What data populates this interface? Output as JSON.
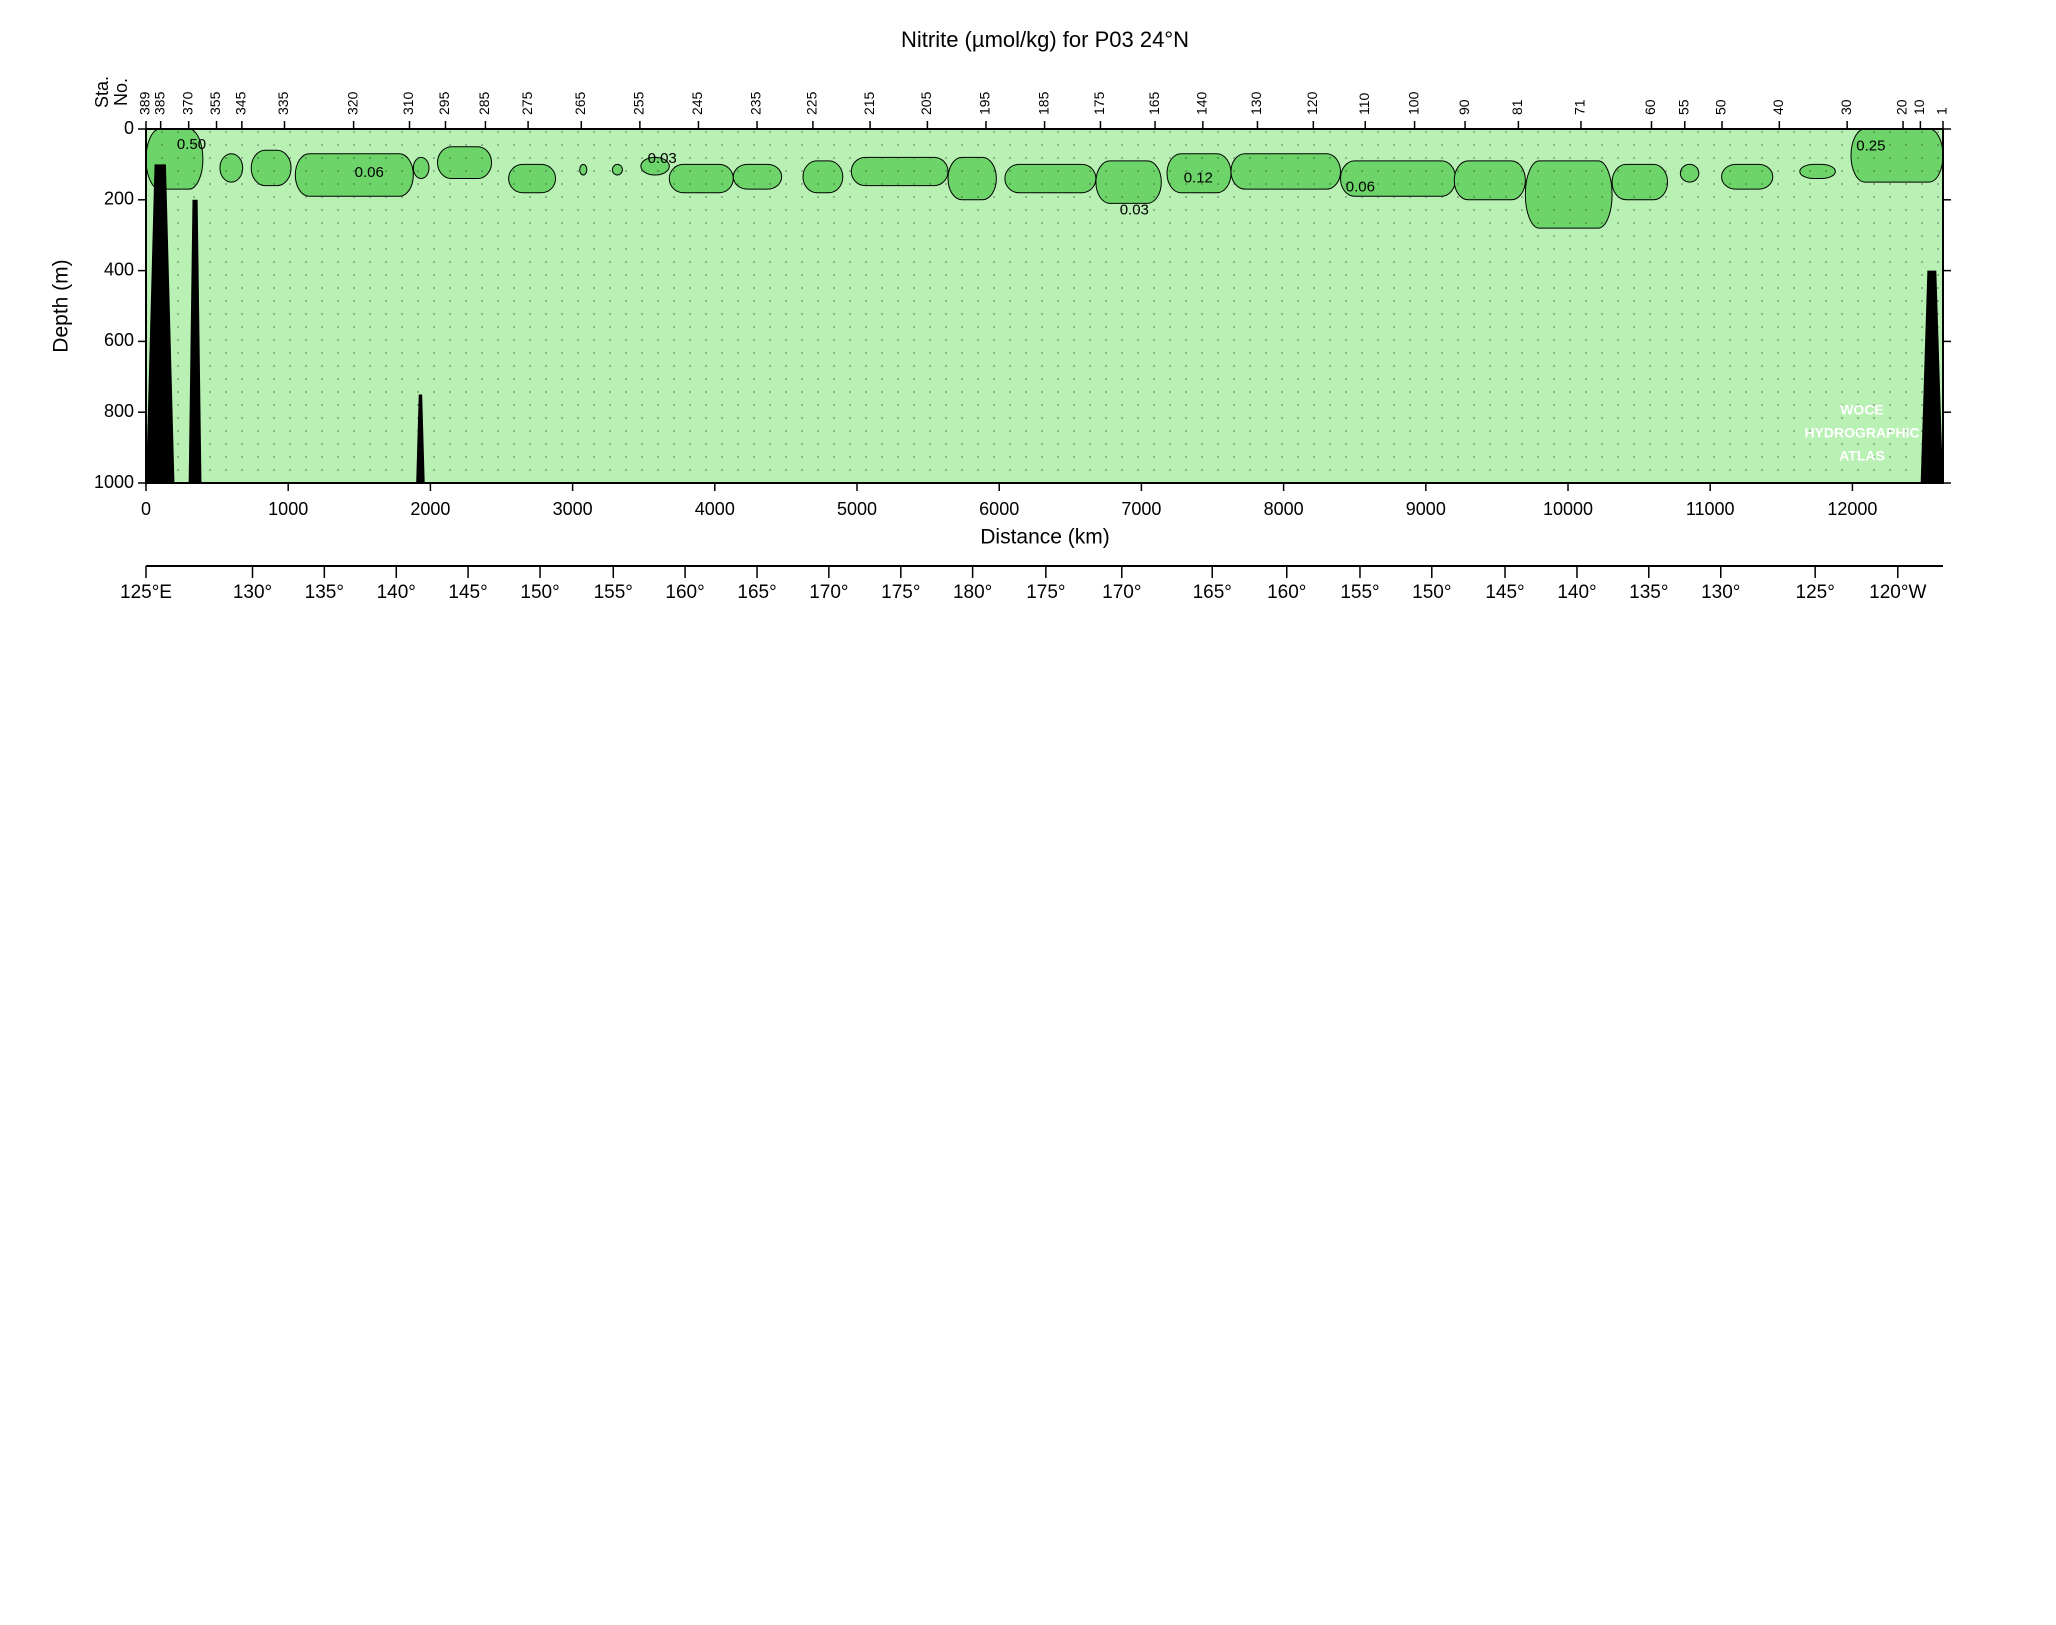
{
  "chart_data": {
    "type": "contour",
    "title": "Nitrite (µmol/kg) for P03 24°N",
    "x_label": "Distance (km)",
    "y_label": "Depth (m)",
    "station_axis_label": [
      "Sta.",
      "No."
    ],
    "xlim": [
      0,
      12637
    ],
    "xticks": [
      0,
      1000,
      2000,
      3000,
      4000,
      5000,
      6000,
      7000,
      8000,
      9000,
      10000,
      11000,
      12000
    ],
    "ylim": [
      0,
      1000
    ],
    "yticks": [
      0,
      200,
      400,
      600,
      800,
      1000
    ],
    "y_reversed": true,
    "background_color": "#b9f0b4",
    "patch_color": "#6cd468",
    "land_color": "#000000",
    "station_ticks": [
      {
        "value": 0,
        "label": "389"
      },
      {
        "value": 103,
        "label": "385"
      },
      {
        "value": 300,
        "label": "370"
      },
      {
        "value": 496,
        "label": "355"
      },
      {
        "value": 674,
        "label": "345"
      },
      {
        "value": 974,
        "label": "335"
      },
      {
        "value": 1460,
        "label": "320"
      },
      {
        "value": 1853,
        "label": "310"
      },
      {
        "value": 2106,
        "label": "295"
      },
      {
        "value": 2387,
        "label": "285"
      },
      {
        "value": 2687,
        "label": "275"
      },
      {
        "value": 3061,
        "label": "265"
      },
      {
        "value": 3473,
        "label": "255"
      },
      {
        "value": 3885,
        "label": "245"
      },
      {
        "value": 4297,
        "label": "235"
      },
      {
        "value": 4690,
        "label": "225"
      },
      {
        "value": 5092,
        "label": "215"
      },
      {
        "value": 5495,
        "label": "205"
      },
      {
        "value": 5907,
        "label": "195"
      },
      {
        "value": 6319,
        "label": "185"
      },
      {
        "value": 6712,
        "label": "175"
      },
      {
        "value": 7096,
        "label": "165"
      },
      {
        "value": 7432,
        "label": "140"
      },
      {
        "value": 7816,
        "label": "130"
      },
      {
        "value": 8209,
        "label": "120"
      },
      {
        "value": 8574,
        "label": "110"
      },
      {
        "value": 8921,
        "label": "100"
      },
      {
        "value": 9276,
        "label": "90"
      },
      {
        "value": 9651,
        "label": "81"
      },
      {
        "value": 10091,
        "label": "71"
      },
      {
        "value": 10587,
        "label": "60"
      },
      {
        "value": 10821,
        "label": "55"
      },
      {
        "value": 11083,
        "label": "50"
      },
      {
        "value": 11486,
        "label": "40"
      },
      {
        "value": 11963,
        "label": "30"
      },
      {
        "value": 12356,
        "label": "20"
      },
      {
        "value": 12478,
        "label": "10"
      },
      {
        "value": 12637,
        "label": "1"
      }
    ],
    "longitude_ticks": [
      {
        "value": 0,
        "label": "125°E"
      },
      {
        "value": 749,
        "label": "130°"
      },
      {
        "value": 1254,
        "label": "135°"
      },
      {
        "value": 1760,
        "label": "140°"
      },
      {
        "value": 2265,
        "label": "145°"
      },
      {
        "value": 2771,
        "label": "150°"
      },
      {
        "value": 3286,
        "label": "155°"
      },
      {
        "value": 3791,
        "label": "160°"
      },
      {
        "value": 4297,
        "label": "165°"
      },
      {
        "value": 4802,
        "label": "170°"
      },
      {
        "value": 5308,
        "label": "175°"
      },
      {
        "value": 5813,
        "label": "180°"
      },
      {
        "value": 6328,
        "label": "175°"
      },
      {
        "value": 6862,
        "label": "170°"
      },
      {
        "value": 7498,
        "label": "165°"
      },
      {
        "value": 8022,
        "label": "160°"
      },
      {
        "value": 8537,
        "label": "155°"
      },
      {
        "value": 9042,
        "label": "150°"
      },
      {
        "value": 9557,
        "label": "145°"
      },
      {
        "value": 10063,
        "label": "140°"
      },
      {
        "value": 10568,
        "label": "135°"
      },
      {
        "value": 11074,
        "label": "130°"
      },
      {
        "value": 11738,
        "label": "125°"
      },
      {
        "value": 12319,
        "label": "120°W"
      }
    ],
    "patches": [
      {
        "x": [
          0,
          400
        ],
        "depth": [
          0,
          170
        ]
      },
      {
        "x": [
          520,
          680
        ],
        "depth": [
          70,
          150
        ]
      },
      {
        "x": [
          740,
          1020
        ],
        "depth": [
          60,
          160
        ]
      },
      {
        "x": [
          1050,
          1880
        ],
        "depth": [
          70,
          190
        ]
      },
      {
        "x": [
          1880,
          1990
        ],
        "depth": [
          80,
          140
        ]
      },
      {
        "x": [
          2050,
          2430
        ],
        "depth": [
          50,
          140
        ]
      },
      {
        "x": [
          2550,
          2880
        ],
        "depth": [
          100,
          180
        ]
      },
      {
        "x": [
          3050,
          3100
        ],
        "depth": [
          100,
          130
        ]
      },
      {
        "x": [
          3280,
          3350
        ],
        "depth": [
          100,
          130
        ]
      },
      {
        "x": [
          3480,
          3680
        ],
        "depth": [
          80,
          130
        ]
      },
      {
        "x": [
          3680,
          4130
        ],
        "depth": [
          100,
          180
        ]
      },
      {
        "x": [
          4130,
          4470
        ],
        "depth": [
          100,
          170
        ]
      },
      {
        "x": [
          4620,
          4900
        ],
        "depth": [
          90,
          180
        ]
      },
      {
        "x": [
          4960,
          5640
        ],
        "depth": [
          80,
          160
        ]
      },
      {
        "x": [
          5640,
          5980
        ],
        "depth": [
          80,
          200
        ]
      },
      {
        "x": [
          6040,
          6680
        ],
        "depth": [
          100,
          180
        ]
      },
      {
        "x": [
          6680,
          7140
        ],
        "depth": [
          90,
          210
        ]
      },
      {
        "x": [
          7180,
          7630
        ],
        "depth": [
          70,
          180
        ]
      },
      {
        "x": [
          7630,
          8400
        ],
        "depth": [
          70,
          170
        ]
      },
      {
        "x": [
          8400,
          9210
        ],
        "depth": [
          90,
          190
        ]
      },
      {
        "x": [
          9200,
          9700
        ],
        "depth": [
          90,
          200
        ]
      },
      {
        "x": [
          9700,
          10310
        ],
        "depth": [
          90,
          280
        ]
      },
      {
        "x": [
          10310,
          10700
        ],
        "depth": [
          100,
          200
        ]
      },
      {
        "x": [
          10790,
          10920
        ],
        "depth": [
          100,
          150
        ]
      },
      {
        "x": [
          11080,
          11440
        ],
        "depth": [
          100,
          170
        ]
      },
      {
        "x": [
          11630,
          11880
        ],
        "depth": [
          100,
          140
        ]
      },
      {
        "x": [
          11990,
          12637
        ],
        "depth": [
          0,
          150
        ]
      }
    ],
    "land": [
      {
        "x": [
          0,
          200
        ],
        "depth": [
          100,
          1000
        ]
      },
      {
        "x": [
          300,
          390
        ],
        "depth": [
          200,
          1000
        ]
      },
      {
        "x": [
          1900,
          1960
        ],
        "depth": [
          750,
          1000
        ]
      },
      {
        "x": [
          12480,
          12637
        ],
        "depth": [
          400,
          1000
        ]
      }
    ],
    "contour_labels": [
      {
        "label": "0.50",
        "x": 320,
        "depth": 45
      },
      {
        "label": "0.06",
        "x": 1570,
        "depth": 125
      },
      {
        "label": "0.03",
        "x": 3630,
        "depth": 85
      },
      {
        "label": "0.03",
        "x": 6950,
        "depth": 230
      },
      {
        "label": "0.12",
        "x": 7400,
        "depth": 140
      },
      {
        "label": "0.06",
        "x": 8540,
        "depth": 165
      },
      {
        "label": "0.25",
        "x": 12130,
        "depth": 50
      }
    ],
    "watermark": [
      "WOCE",
      "HYDROGRAPHIC",
      "ATLAS"
    ]
  }
}
